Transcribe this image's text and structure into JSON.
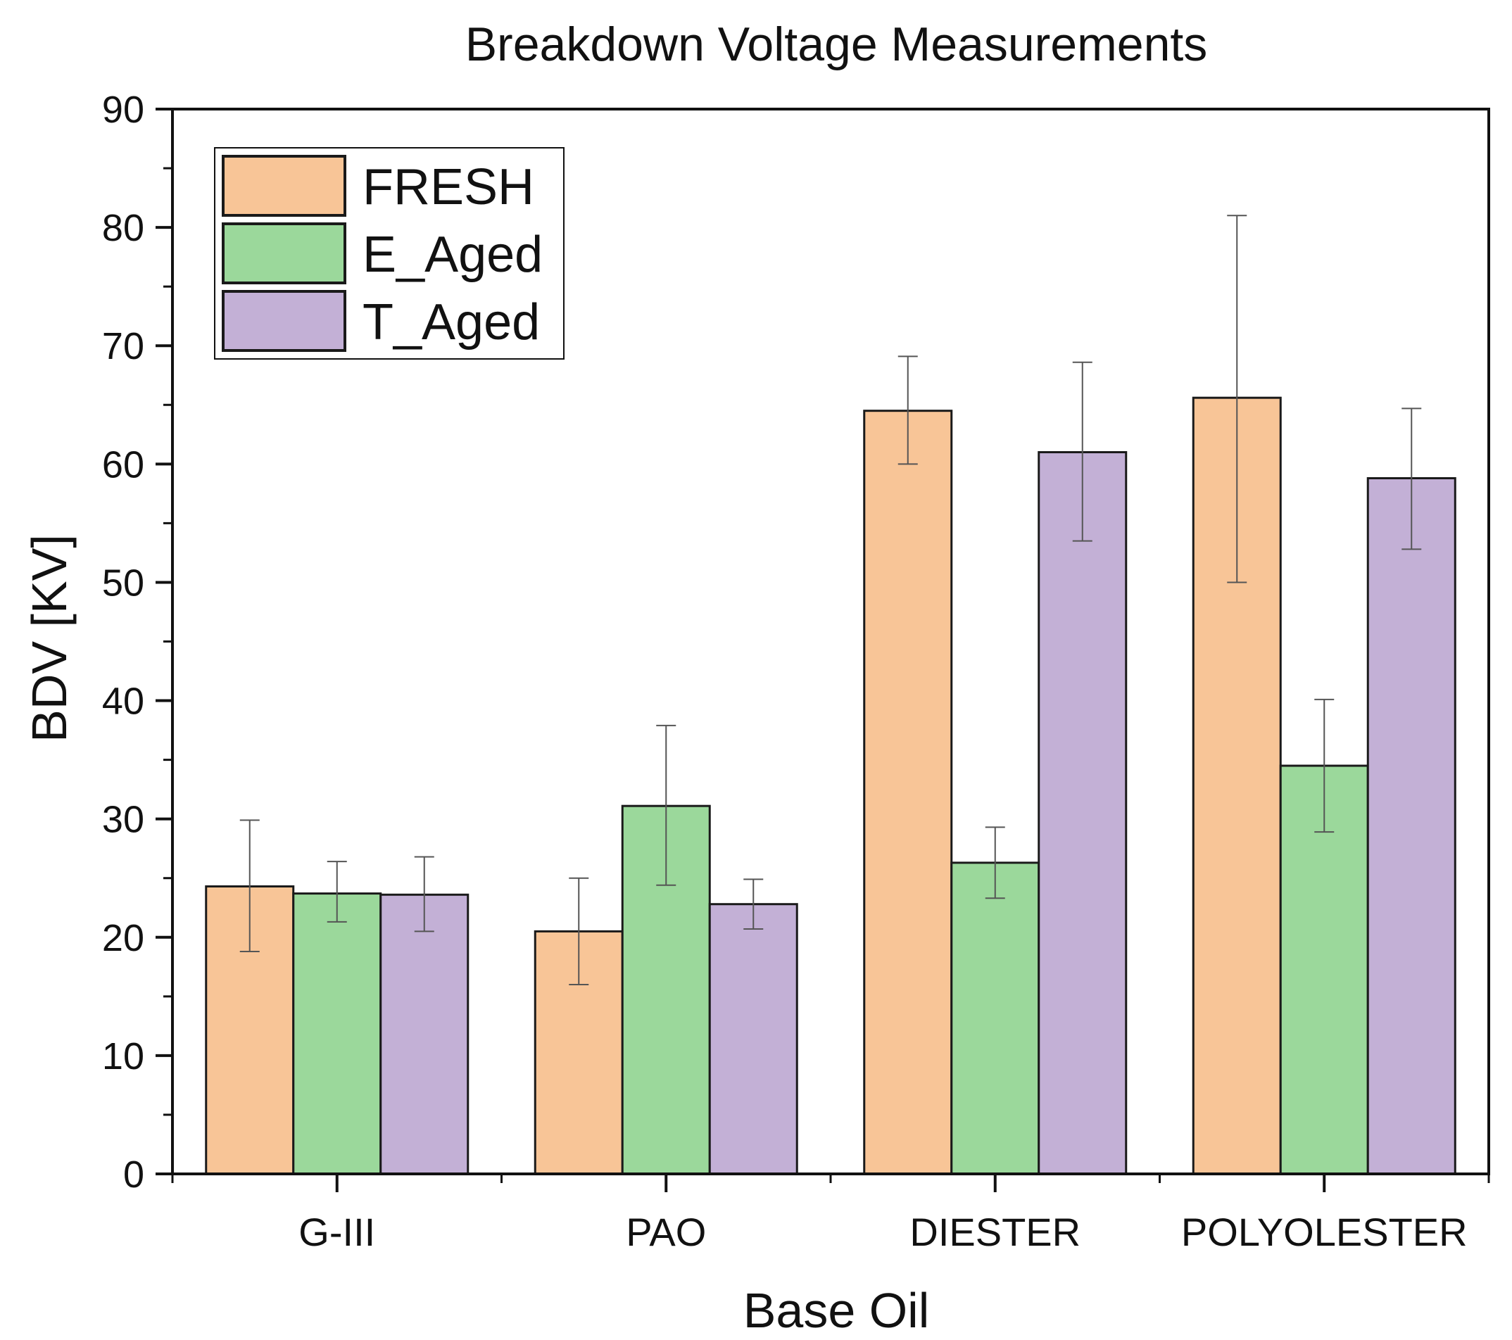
{
  "chart_data": {
    "type": "bar",
    "title": "Breakdown Voltage Measurements",
    "xlabel": "Base Oil",
    "ylabel": "BDV [KV]",
    "ylim": [
      0,
      90
    ],
    "yticks": [
      0,
      10,
      20,
      30,
      40,
      50,
      60,
      70,
      80,
      90
    ],
    "categories": [
      "G-III",
      "PAO",
      "DIESTER",
      "POLYOLESTER"
    ],
    "series": [
      {
        "name": "FRESH",
        "color": "#f8c597",
        "values": [
          24.3,
          20.5,
          64.5,
          65.6
        ],
        "err_low": [
          18.8,
          16.0,
          60.0,
          50.0
        ],
        "err_high": [
          29.9,
          25.0,
          69.1,
          81.0
        ]
      },
      {
        "name": "E_Aged",
        "color": "#9bd89b",
        "values": [
          23.7,
          31.1,
          26.3,
          34.5
        ],
        "err_low": [
          21.3,
          24.4,
          23.3,
          28.9
        ],
        "err_high": [
          26.4,
          37.9,
          29.3,
          40.1
        ]
      },
      {
        "name": "T_Aged",
        "color": "#c3b0d6",
        "values": [
          23.6,
          22.8,
          61.0,
          58.8
        ],
        "err_low": [
          20.5,
          20.7,
          53.5,
          52.8
        ],
        "err_high": [
          26.8,
          24.9,
          68.6,
          64.7
        ]
      }
    ],
    "legend_position": "top-left",
    "grid": false
  }
}
